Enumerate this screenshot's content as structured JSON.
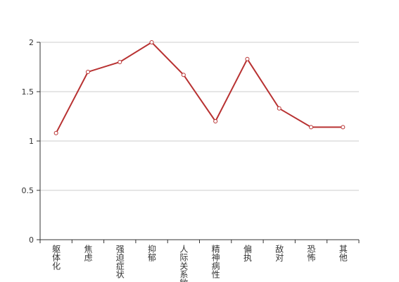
{
  "chart_data": {
    "type": "line",
    "categories": [
      "躯体化",
      "焦虑",
      "强迫症状",
      "抑郁",
      "人际关系敏感",
      "精神病性",
      "偏执",
      "敌对",
      "恐怖",
      "其他"
    ],
    "values": [
      1.08,
      1.7,
      1.8,
      2.0,
      1.67,
      1.2,
      1.83,
      1.33,
      1.14,
      1.14
    ],
    "color": "#b83232",
    "ylim": [
      0,
      2
    ],
    "yticks": [
      0,
      0.5,
      1,
      1.5,
      2
    ],
    "grid": true
  }
}
